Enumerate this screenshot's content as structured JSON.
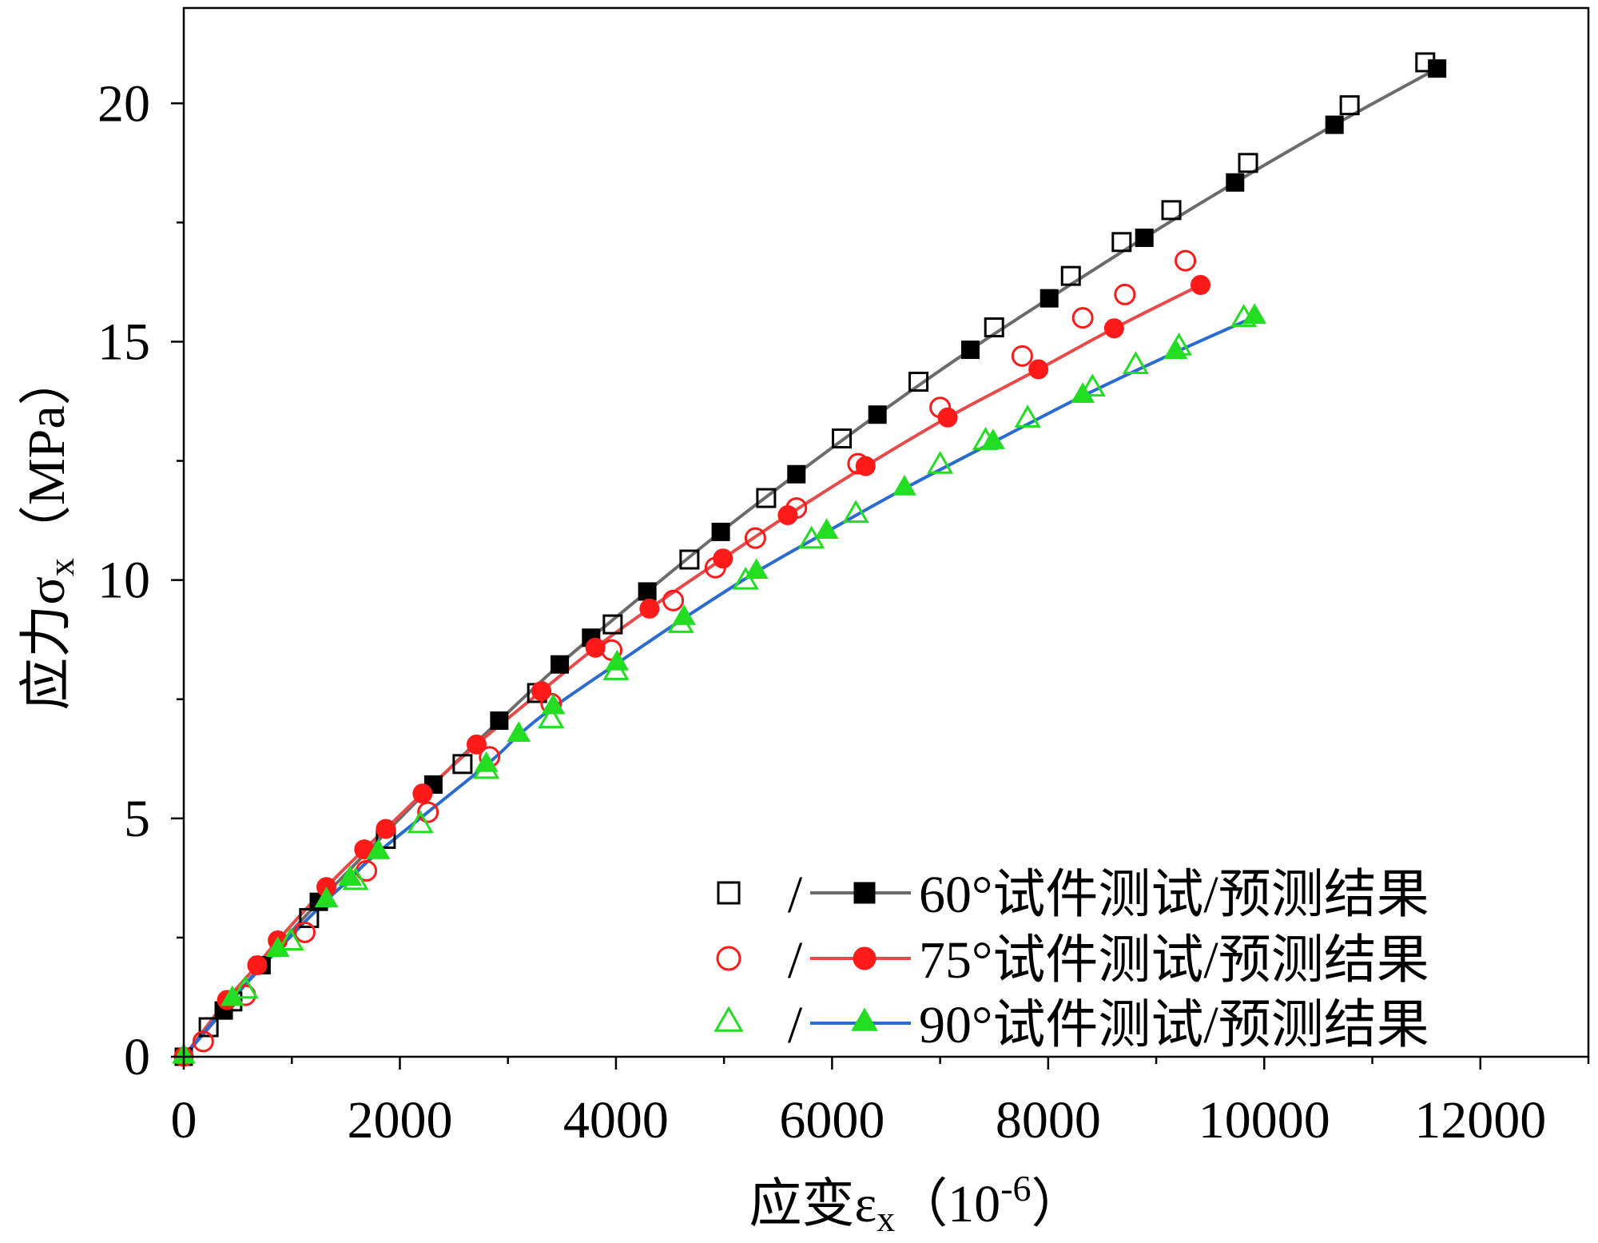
{
  "chart_data": {
    "type": "line",
    "xlabel": {
      "text": "应变ε",
      "sub": "x",
      "unit": "（10",
      "unit_sup": "-6",
      "unit_close": "）"
    },
    "ylabel": {
      "text": "应力σ",
      "sub": "x",
      "unit": "（MPa）"
    },
    "xlim": [
      0,
      13000
    ],
    "ylim": [
      0,
      22
    ],
    "x_ticks": [
      0,
      2000,
      4000,
      6000,
      8000,
      10000,
      12000
    ],
    "x_tick_labels": [
      "0",
      "2000",
      "4000",
      "6000",
      "8000",
      "10000",
      "12000"
    ],
    "x_minor_step": 1000,
    "y_ticks": [
      0,
      5,
      10,
      15,
      20
    ],
    "y_tick_labels": [
      "0",
      "5",
      "10",
      "15",
      "20"
    ],
    "y_minor_step": 2.5,
    "grid": false,
    "legend_position": "bottom-right",
    "legend": [
      {
        "separator": "/",
        "label": "60°试件测试/预测结果"
      },
      {
        "separator": "/",
        "label": "75°试件测试/预测结果"
      },
      {
        "separator": "/",
        "label": "90°试件测试/预测结果"
      }
    ],
    "series": [
      {
        "legend": 0,
        "marker": "square-open",
        "color": "#000000",
        "points": [
          [
            230,
            0.62
          ],
          [
            450,
            1.16
          ],
          [
            1160,
            2.91
          ],
          [
            1870,
            4.57
          ],
          [
            2580,
            6.14
          ],
          [
            3270,
            7.63
          ],
          [
            3970,
            9.07
          ],
          [
            4680,
            10.43
          ],
          [
            5390,
            11.72
          ],
          [
            6090,
            12.97
          ],
          [
            6800,
            14.16
          ],
          [
            7500,
            15.3
          ],
          [
            8210,
            16.38
          ],
          [
            8680,
            17.09
          ],
          [
            9140,
            17.76
          ],
          [
            9850,
            18.75
          ],
          [
            10790,
            19.96
          ],
          [
            11490,
            20.86
          ]
        ]
      },
      {
        "legend": 0,
        "marker": "square-filled",
        "color": "#000000",
        "line_color": "#6b6b6b",
        "points": [
          [
            0,
            0
          ],
          [
            370,
            0.97
          ],
          [
            720,
            1.92
          ],
          [
            1250,
            3.25
          ],
          [
            2310,
            5.71
          ],
          [
            2920,
            7.05
          ],
          [
            3480,
            8.23
          ],
          [
            3770,
            8.79
          ],
          [
            4290,
            9.76
          ],
          [
            4970,
            11.01
          ],
          [
            5670,
            12.22
          ],
          [
            6420,
            13.47
          ],
          [
            7280,
            14.83
          ],
          [
            8010,
            15.91
          ],
          [
            8890,
            17.18
          ],
          [
            9730,
            18.34
          ],
          [
            10650,
            19.55
          ],
          [
            11600,
            20.73
          ]
        ]
      },
      {
        "legend": 1,
        "marker": "circle-open",
        "color": "#ff1a1a",
        "points": [
          [
            180,
            0.32
          ],
          [
            570,
            1.29
          ],
          [
            1120,
            2.61
          ],
          [
            1690,
            3.9
          ],
          [
            2260,
            5.13
          ],
          [
            2830,
            6.29
          ],
          [
            3400,
            7.41
          ],
          [
            3960,
            8.53
          ],
          [
            4530,
            9.57
          ],
          [
            4920,
            10.26
          ],
          [
            5290,
            10.88
          ],
          [
            5670,
            11.51
          ],
          [
            6240,
            12.44
          ],
          [
            7000,
            13.62
          ],
          [
            7760,
            14.7
          ],
          [
            8320,
            15.5
          ],
          [
            8710,
            15.99
          ],
          [
            9270,
            16.7
          ]
        ]
      },
      {
        "legend": 1,
        "marker": "circle-filled",
        "color": "#ff1a1a",
        "line_color": "#e84a4a",
        "points": [
          [
            0,
            0
          ],
          [
            400,
            1.19
          ],
          [
            680,
            1.92
          ],
          [
            870,
            2.44
          ],
          [
            1320,
            3.56
          ],
          [
            1670,
            4.35
          ],
          [
            1870,
            4.78
          ],
          [
            2210,
            5.52
          ],
          [
            2710,
            6.55
          ],
          [
            3310,
            7.67
          ],
          [
            3810,
            8.58
          ],
          [
            4310,
            9.4
          ],
          [
            4990,
            10.45
          ],
          [
            5590,
            11.36
          ],
          [
            6310,
            12.39
          ],
          [
            7070,
            13.41
          ],
          [
            7910,
            14.42
          ],
          [
            8610,
            15.28
          ],
          [
            9410,
            16.19
          ]
        ]
      },
      {
        "legend": 2,
        "marker": "triangle-open",
        "color": "#22dd22",
        "points": [
          [
            570,
            1.38
          ],
          [
            990,
            2.39
          ],
          [
            1590,
            3.66
          ],
          [
            2190,
            4.85
          ],
          [
            2800,
            5.99
          ],
          [
            3400,
            7.05
          ],
          [
            4000,
            8.06
          ],
          [
            4600,
            9.05
          ],
          [
            5200,
            9.96
          ],
          [
            5810,
            10.82
          ],
          [
            6220,
            11.36
          ],
          [
            7000,
            12.39
          ],
          [
            7420,
            12.89
          ],
          [
            7810,
            13.36
          ],
          [
            8410,
            14.01
          ],
          [
            8810,
            14.48
          ],
          [
            9210,
            14.87
          ],
          [
            9810,
            15.47
          ]
        ]
      },
      {
        "legend": 2,
        "marker": "triangle-filled",
        "color": "#22dd22",
        "line_color": "#2a6bd1",
        "points": [
          [
            0,
            0
          ],
          [
            450,
            1.21
          ],
          [
            870,
            2.24
          ],
          [
            1320,
            3.28
          ],
          [
            1540,
            3.73
          ],
          [
            1800,
            4.29
          ],
          [
            2800,
            6.12
          ],
          [
            3100,
            6.75
          ],
          [
            3420,
            7.33
          ],
          [
            4010,
            8.25
          ],
          [
            4630,
            9.2
          ],
          [
            5300,
            10.17
          ],
          [
            5950,
            11.01
          ],
          [
            6670,
            11.92
          ],
          [
            7490,
            12.89
          ],
          [
            8320,
            13.86
          ],
          [
            9180,
            14.78
          ],
          [
            9910,
            15.52
          ]
        ]
      }
    ]
  }
}
